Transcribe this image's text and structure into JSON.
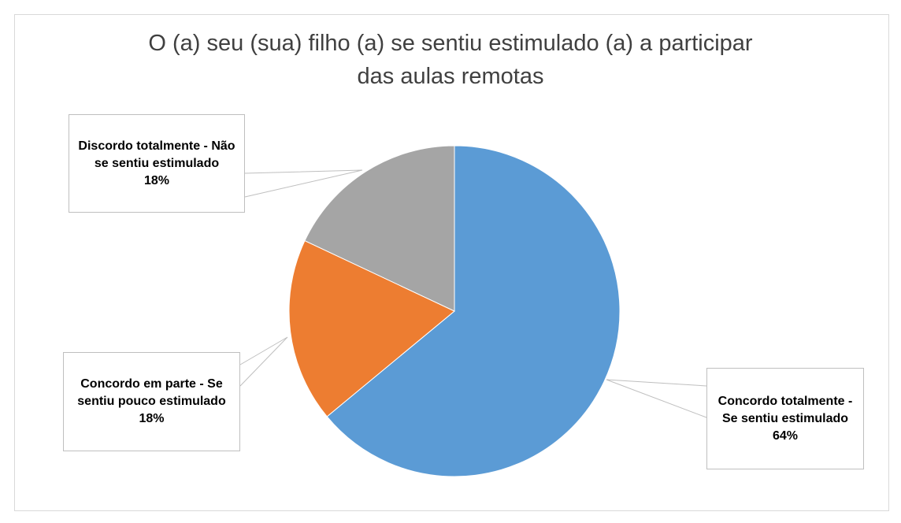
{
  "chart_data": {
    "type": "pie",
    "title": "O (a) seu (sua) filho (a) se sentiu estimulado (a) a participar das aulas remotas",
    "categories": [
      "Concordo totalmente - Se sentiu estimulado",
      "Concordo em parte - Se sentiu pouco estimulado",
      "Discordo totalmente - Não se sentiu estimulado"
    ],
    "values": [
      64,
      18,
      18
    ],
    "value_labels": [
      "64%",
      "18%",
      "18%"
    ],
    "colors": [
      "#5b9bd5",
      "#ed7d31",
      "#a5a5a5"
    ]
  }
}
